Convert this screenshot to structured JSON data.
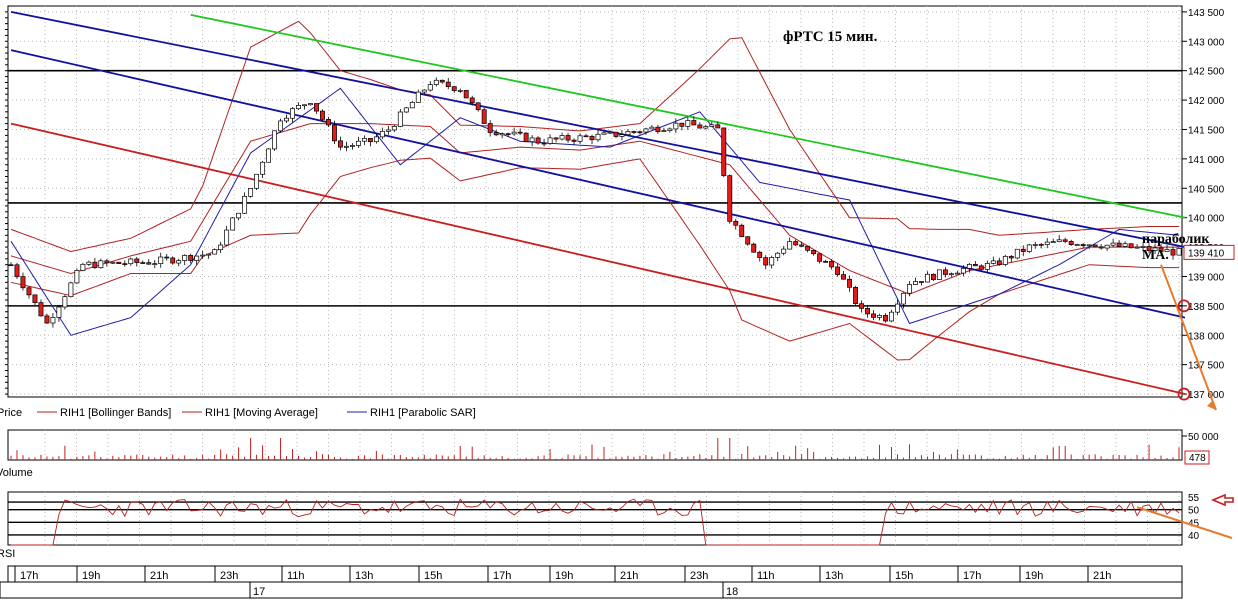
{
  "chart_data": [
    {
      "type": "candlestick",
      "title": "фРТС   15 мин.",
      "ylim": [
        136950,
        143600
      ],
      "yticks": [
        137000,
        137500,
        138000,
        138500,
        139000,
        139500,
        140000,
        140500,
        141000,
        141500,
        142000,
        142500,
        143000,
        143500
      ],
      "ytick_labels": [
        "137 000",
        "137 500",
        "138 000",
        "138 500",
        "139 000",
        "139 500",
        "140 000",
        "140 500",
        "141 000",
        "141 500",
        "142 000",
        "142 500",
        "143 000",
        "143 500"
      ],
      "last_price_label": "139 410",
      "legend": [
        {
          "name": "Price",
          "color": "#000000"
        },
        {
          "name": "RIH1 [Bollinger Bands]",
          "color": "#b22222"
        },
        {
          "name": "RIH1 [Moving Average]",
          "color": "#b22222"
        },
        {
          "name": "RIH1 [Parabolic SAR]",
          "color": "#1f1fa8"
        }
      ],
      "horizontal_levels": [
        142500,
        140250,
        138500
      ],
      "annotations": [
        "параболик",
        "MA."
      ],
      "bollinger_mid_anchors": [
        [
          0,
          139350
        ],
        [
          10,
          139050
        ],
        [
          20,
          139350
        ],
        [
          30,
          139600
        ],
        [
          40,
          141300
        ],
        [
          50,
          141600
        ],
        [
          60,
          141600
        ],
        [
          70,
          141550
        ],
        [
          75,
          141100
        ],
        [
          85,
          141200
        ],
        [
          95,
          141150
        ],
        [
          105,
          141300
        ],
        [
          120,
          140900
        ],
        [
          130,
          139700
        ],
        [
          140,
          139100
        ],
        [
          150,
          138700
        ],
        [
          160,
          139100
        ],
        [
          170,
          139300
        ],
        [
          180,
          139500
        ],
        [
          190,
          139500
        ]
      ],
      "bollinger_width_anchors": [
        [
          0,
          450
        ],
        [
          20,
          300
        ],
        [
          32,
          600
        ],
        [
          40,
          1600
        ],
        [
          48,
          1800
        ],
        [
          55,
          900
        ],
        [
          65,
          600
        ],
        [
          85,
          350
        ],
        [
          105,
          300
        ],
        [
          115,
          1500
        ],
        [
          122,
          2400
        ],
        [
          130,
          1800
        ],
        [
          140,
          900
        ],
        [
          148,
          1200
        ],
        [
          155,
          900
        ],
        [
          165,
          500
        ],
        [
          180,
          300
        ],
        [
          190,
          350
        ]
      ],
      "sar_anchors": [
        [
          0,
          139600
        ],
        [
          10,
          138000
        ],
        [
          20,
          138300
        ],
        [
          30,
          139200
        ],
        [
          40,
          141100
        ],
        [
          55,
          142200
        ],
        [
          65,
          140900
        ],
        [
          75,
          141700
        ],
        [
          85,
          141300
        ],
        [
          100,
          141200
        ],
        [
          115,
          141800
        ],
        [
          125,
          140600
        ],
        [
          140,
          140300
        ],
        [
          150,
          138200
        ],
        [
          165,
          138700
        ],
        [
          175,
          139200
        ],
        [
          185,
          139800
        ],
        [
          195,
          139700
        ]
      ],
      "candles": {
        "count": 196,
        "close_anchors": [
          [
            0,
            139200
          ],
          [
            6,
            138200
          ],
          [
            12,
            139200
          ],
          [
            24,
            139250
          ],
          [
            34,
            139400
          ],
          [
            40,
            140500
          ],
          [
            45,
            141700
          ],
          [
            50,
            142000
          ],
          [
            55,
            141200
          ],
          [
            60,
            141300
          ],
          [
            63,
            141500
          ],
          [
            70,
            142300
          ],
          [
            75,
            142200
          ],
          [
            80,
            141500
          ],
          [
            88,
            141300
          ],
          [
            100,
            141400
          ],
          [
            112,
            141600
          ],
          [
            118,
            141500
          ],
          [
            120,
            140000
          ],
          [
            126,
            139200
          ],
          [
            130,
            139600
          ],
          [
            138,
            139100
          ],
          [
            142,
            138400
          ],
          [
            146,
            138300
          ],
          [
            150,
            138900
          ],
          [
            157,
            139100
          ],
          [
            164,
            139200
          ],
          [
            170,
            139500
          ],
          [
            176,
            139600
          ],
          [
            186,
            139500
          ],
          [
            195,
            139410
          ]
        ]
      },
      "channel_lines": [
        {
          "name": "green",
          "color": "#1ec81e",
          "from": [
            30,
            143450
          ],
          "to": [
            196,
            140000
          ]
        },
        {
          "name": "blue-upper",
          "color": "#1010a0",
          "from": [
            0,
            143500
          ],
          "to": [
            196,
            139500
          ]
        },
        {
          "name": "blue-lower",
          "color": "#1010a0",
          "from": [
            0,
            142850
          ],
          "to": [
            196,
            138300
          ]
        },
        {
          "name": "red",
          "color": "#c81e1e",
          "from": [
            0,
            141600
          ],
          "to": [
            196,
            137000
          ]
        }
      ],
      "forecast_arrows": [
        {
          "from_idx": 192,
          "from": 139200,
          "to_x_offset": 55,
          "to": 136950,
          "color": "#e87b2a"
        }
      ],
      "marker_circles": [
        138500,
        137000
      ]
    },
    {
      "type": "bar",
      "series": [
        {
          "name": "Volume"
        }
      ],
      "ytick_labels": [
        "50 000"
      ],
      "last_value_label": "478"
    },
    {
      "type": "line",
      "series": [
        {
          "name": "RSI"
        }
      ],
      "yticks": [
        40,
        45,
        50,
        55
      ],
      "ytick_labels": [
        "40",
        "45",
        "50",
        "55"
      ],
      "levels": [
        53,
        50,
        45,
        40
      ]
    }
  ],
  "time_axis": {
    "hour_labels": [
      "17h",
      "19h",
      "21h",
      "23h",
      "11h",
      "13h",
      "15h",
      "17h",
      "19h",
      "21h",
      "23h",
      "11h",
      "13h",
      "15h",
      "17h",
      "19h",
      "21h"
    ],
    "day_labels": [
      "17",
      "18"
    ]
  }
}
